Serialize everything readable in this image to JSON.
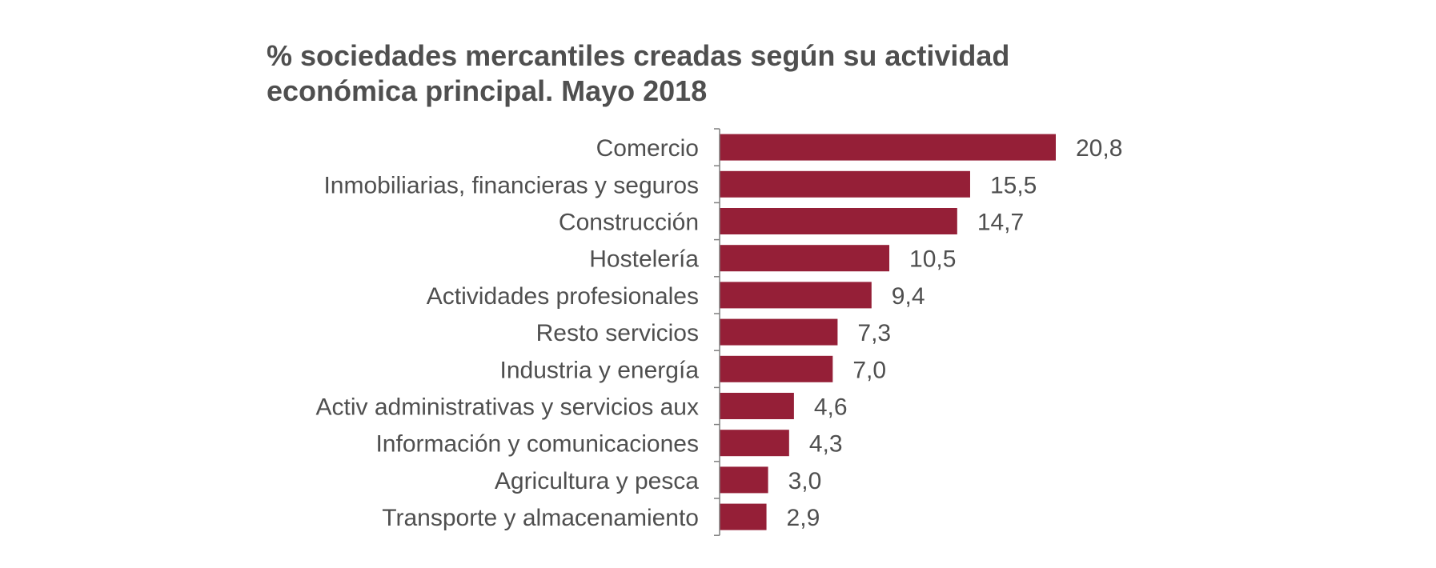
{
  "chart_data": {
    "type": "bar",
    "orientation": "horizontal",
    "title": [
      "% sociedades mercantiles creadas según su actividad",
      "económica principal. Mayo 2018"
    ],
    "categories": [
      "Comercio",
      "Inmobiliarias, financieras y seguros",
      "Construcción ",
      "Hostelería",
      "Actividades profesionales",
      "Resto servicios",
      "Industria y energía",
      "Activ administrativas y servicios aux",
      "Información y comunicaciones",
      "Agricultura y pesca",
      "Transporte y almacenamiento"
    ],
    "values": [
      20.8,
      15.5,
      14.7,
      10.5,
      9.4,
      7.3,
      7.0,
      4.6,
      4.3,
      3.0,
      2.9
    ],
    "value_labels": [
      "20,8",
      "15,5",
      "14,7",
      "10,5",
      "9,4",
      "7,3",
      "7,0",
      "4,6",
      "4,3",
      "3,0",
      "2,9"
    ],
    "xlabel": "",
    "ylabel": "",
    "xlim": [
      0,
      20.8
    ],
    "grid": false,
    "legend": "none",
    "bar_color": "#951f37",
    "text_color": "#4f4f4f",
    "axis_color": "#7f7f7f"
  }
}
